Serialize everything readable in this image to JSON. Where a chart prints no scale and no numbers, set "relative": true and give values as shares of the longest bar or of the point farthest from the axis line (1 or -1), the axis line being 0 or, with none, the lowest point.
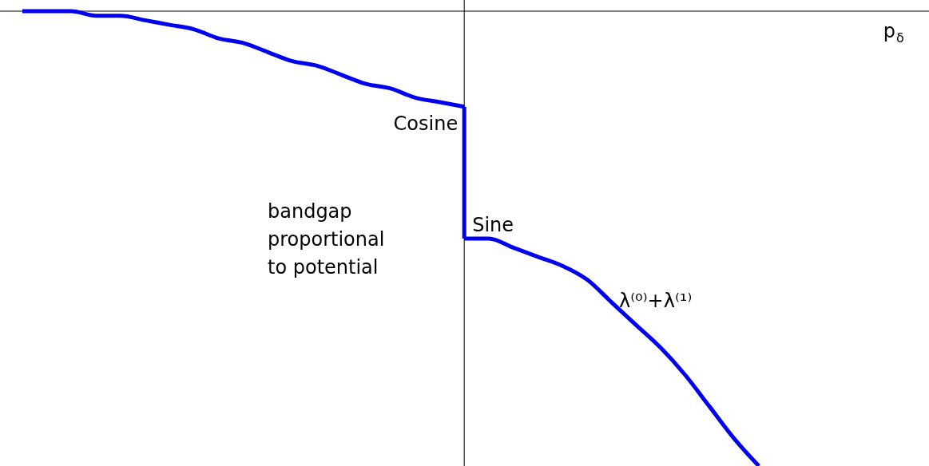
{
  "chart_data": {
    "type": "line",
    "relative": true,
    "categories": [
      null,
      null,
      null,
      null,
      null,
      null,
      null,
      null,
      null,
      null,
      null,
      null,
      null,
      null,
      null,
      null,
      null,
      null,
      null,
      null,
      null,
      null,
      null,
      null,
      null,
      null,
      null,
      null,
      null,
      null,
      null
    ],
    "series": [
      {
        "color": "#0000ee",
        "values": [
          0,
          0,
          0,
          -0.01,
          -0.01,
          -0.02,
          -0.03,
          -0.04,
          -0.06,
          -0.07,
          -0.09,
          -0.11,
          -0.12,
          -0.14,
          -0.16,
          -0.17,
          -0.19,
          -0.2,
          -0.21,
          null,
          null,
          null,
          null,
          null,
          null,
          null,
          null,
          null,
          null,
          null,
          null
        ]
      },
      {
        "color": "#0000ee",
        "values": [
          null,
          null,
          null,
          null,
          null,
          null,
          null,
          null,
          null,
          null,
          null,
          null,
          null,
          null,
          null,
          null,
          null,
          null,
          -0.5,
          -0.5,
          -0.52,
          -0.54,
          -0.56,
          -0.59,
          -0.64,
          -0.69,
          -0.74,
          -0.8,
          -0.87,
          -0.94,
          -1
        ]
      }
    ],
    "annotations": [
      "Cosine",
      "Sine",
      "bandgap\nproportional\nto potential",
      "λ⁽⁰⁾+λ⁽¹⁾",
      "p$_{δ}$"
    ]
  }
}
